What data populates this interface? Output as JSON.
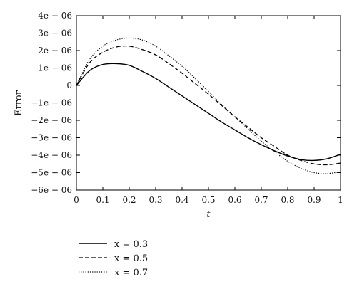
{
  "chart_data": {
    "type": "line",
    "xlabel": "t",
    "ylabel": "Error",
    "xlim": [
      0,
      1
    ],
    "ylim": [
      -6e-06,
      4e-06
    ],
    "x_ticks": [
      0,
      0.1,
      0.2,
      0.3,
      0.4,
      0.5,
      0.6,
      0.7,
      0.8,
      0.9,
      1
    ],
    "x_tick_labels": [
      "0",
      "0.1",
      "0.2",
      "0.3",
      "0.4",
      "0.5",
      "0.6",
      "0.7",
      "0.8",
      "0.9",
      "1"
    ],
    "y_ticks": [
      4e-06,
      3e-06,
      2e-06,
      1e-06,
      0,
      -1e-06,
      -2e-06,
      -3e-06,
      -4e-06,
      -5e-06,
      -6e-06
    ],
    "y_tick_labels": [
      "4e − 06",
      "3e − 06",
      "2e − 06",
      "1e − 06",
      "0",
      "−1e − 06",
      "−2e − 06",
      "−3e − 06",
      "−4e − 06",
      "−5e − 06",
      "−6e − 06"
    ],
    "grid": false,
    "legend_position": "bottom-left, below plot",
    "x": [
      0,
      0.05,
      0.1,
      0.15,
      0.2,
      0.25,
      0.3,
      0.35,
      0.4,
      0.45,
      0.5,
      0.55,
      0.6,
      0.65,
      0.7,
      0.75,
      0.8,
      0.85,
      0.9,
      0.95,
      1.0
    ],
    "series": [
      {
        "name": "x = 0.3",
        "style": "solid",
        "values": [
          0,
          8.5e-07,
          1.2e-06,
          1.25e-06,
          1.15e-06,
          8e-07,
          4e-07,
          -1e-07,
          -6e-07,
          -1.1e-06,
          -1.6e-06,
          -2.1e-06,
          -2.55e-06,
          -3e-06,
          -3.4e-06,
          -3.75e-06,
          -4.05e-06,
          -4.25e-06,
          -4.3e-06,
          -4.2e-06,
          -3.95e-06
        ]
      },
      {
        "name": "x = 0.5",
        "style": "dashed",
        "values": [
          0,
          1.3e-06,
          1.9e-06,
          2.2e-06,
          2.25e-06,
          2.05e-06,
          1.75e-06,
          1.25e-06,
          7e-07,
          1e-07,
          -5e-07,
          -1.15e-06,
          -1.8e-06,
          -2.4e-06,
          -3e-06,
          -3.5e-06,
          -4e-06,
          -4.3e-06,
          -4.5e-06,
          -4.55e-06,
          -4.45e-06
        ]
      },
      {
        "name": "x = 0.7",
        "style": "dotted",
        "values": [
          0,
          1.5e-06,
          2.25e-06,
          2.6e-06,
          2.72e-06,
          2.6e-06,
          2.25e-06,
          1.7e-06,
          1.1e-06,
          4e-07,
          -3.5e-07,
          -1.1e-06,
          -1.8e-06,
          -2.5e-06,
          -3.2e-06,
          -3.8e-06,
          -4.35e-06,
          -4.75e-06,
          -5e-06,
          -5.05e-06,
          -4.95e-06
        ]
      }
    ]
  }
}
